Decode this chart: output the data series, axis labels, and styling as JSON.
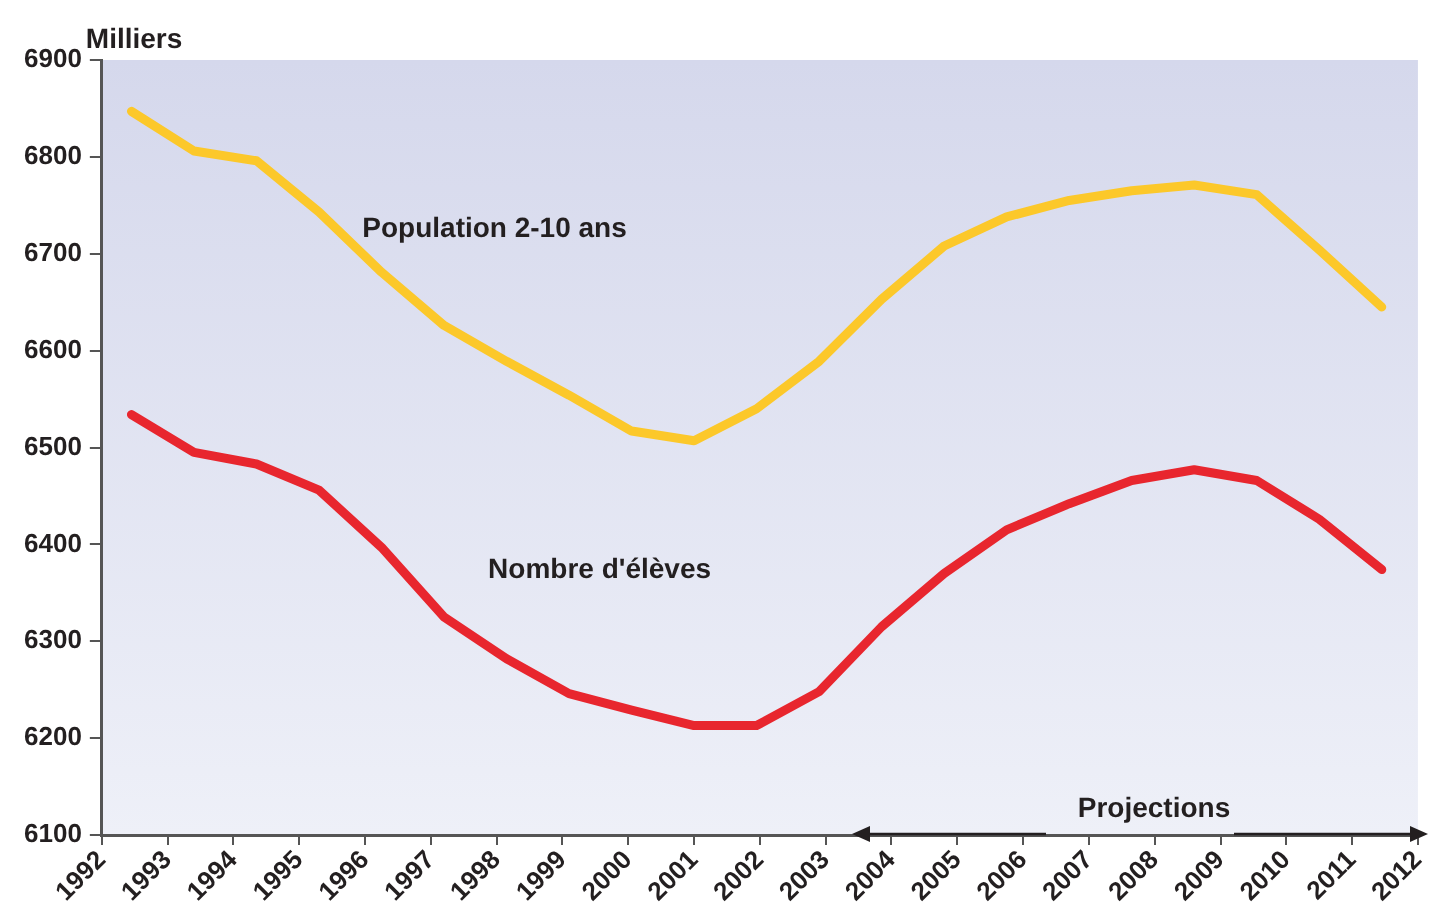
{
  "chart_data": {
    "type": "line",
    "ylabel": "Milliers",
    "x": [
      1992.45,
      1993.4,
      1994.35,
      1995.3,
      1996.25,
      1997.2,
      1998.15,
      1999.1,
      2000.05,
      2001,
      2001.95,
      2002.9,
      2003.85,
      2004.8,
      2005.75,
      2006.7,
      2007.65,
      2008.6,
      2009.55,
      2010.5,
      2011.45
    ],
    "series": [
      {
        "name": "Population 2-10 ans",
        "color": "#fcc82a",
        "values": [
          6847,
          6806,
          6796,
          6743,
          6681,
          6626,
          6589,
          6554,
          6517,
          6507,
          6540,
          6589,
          6653,
          6708,
          6738,
          6755,
          6765,
          6771,
          6761,
          6704,
          6645
        ]
      },
      {
        "name": "Nombre d'élèves",
        "color": "#e8262e",
        "values": [
          6534,
          6495,
          6483,
          6456,
          6397,
          6325,
          6282,
          6246,
          6229,
          6213,
          6213,
          6248,
          6315,
          6370,
          6415,
          6442,
          6466,
          6477,
          6466,
          6426,
          6374
        ]
      }
    ],
    "xlim": [
      1992,
      2012
    ],
    "xticks": [
      1992,
      1993,
      1994,
      1995,
      1996,
      1997,
      1998,
      1999,
      2000,
      2001,
      2002,
      2003,
      2004,
      2005,
      2006,
      2007,
      2008,
      2009,
      2010,
      2011,
      2012
    ],
    "ylim": [
      6100,
      6900
    ],
    "yticks": [
      6100,
      6200,
      6300,
      6400,
      6500,
      6600,
      6700,
      6800,
      6900
    ],
    "annotations": [
      "Projections"
    ],
    "grid": false,
    "legend": false,
    "marker": "none",
    "line_style": "solid"
  }
}
